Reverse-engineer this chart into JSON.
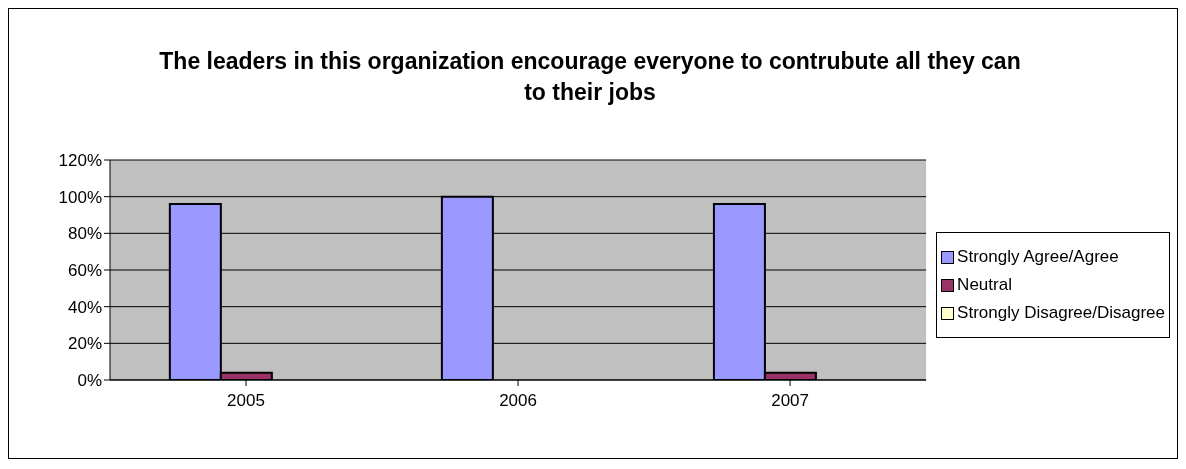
{
  "chart_data": {
    "type": "bar",
    "title": "The leaders in this organization encourage everyone to contrubute all they can to their jobs",
    "categories": [
      "2005",
      "2006",
      "2007"
    ],
    "series": [
      {
        "name": "Strongly Agree/Agree",
        "color": "#9999ff",
        "values": [
          96,
          100,
          96
        ]
      },
      {
        "name": "Neutral",
        "color": "#993366",
        "values": [
          4,
          0,
          4
        ]
      },
      {
        "name": "Strongly Disagree/Disagree",
        "color": "#ffffcc",
        "values": [
          0,
          0,
          0
        ]
      }
    ],
    "ylim": [
      0,
      120
    ],
    "yticks": [
      {
        "value": 0,
        "label": "0%"
      },
      {
        "value": 20,
        "label": "20%"
      },
      {
        "value": 40,
        "label": "40%"
      },
      {
        "value": 60,
        "label": "60%"
      },
      {
        "value": 80,
        "label": "80%"
      },
      {
        "value": 100,
        "label": "100%"
      },
      {
        "value": 120,
        "label": "120%"
      }
    ],
    "grid": "y",
    "legend": "right"
  }
}
